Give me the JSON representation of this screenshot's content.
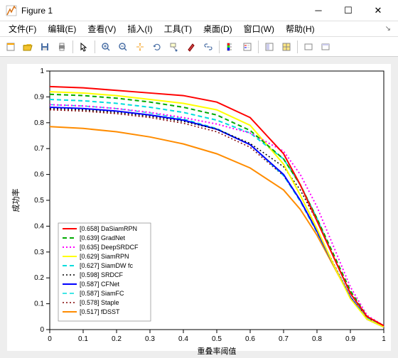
{
  "window": {
    "title": "Figure 1"
  },
  "menu": {
    "items": [
      "文件(F)",
      "编辑(E)",
      "查看(V)",
      "插入(I)",
      "工具(T)",
      "桌面(D)",
      "窗口(W)",
      "帮助(H)"
    ]
  },
  "chart": {
    "type": "line",
    "xlabel": "重叠率阈值",
    "ylabel": "成功率",
    "xlim": [
      0,
      1
    ],
    "ylim": [
      0,
      1
    ],
    "xticks": [
      0,
      0.1,
      0.2,
      0.3,
      0.4,
      0.5,
      0.6,
      0.7,
      0.8,
      0.9,
      1
    ],
    "yticks": [
      0,
      0.1,
      0.2,
      0.3,
      0.4,
      0.5,
      0.6,
      0.7,
      0.8,
      0.9,
      1
    ],
    "background_color": "#ffffff",
    "grid_color": "none",
    "axis_color": "#000000",
    "label_fontsize": 11,
    "tick_fontsize": 10,
    "legend": {
      "position": "lower-left",
      "fontsize": 9
    },
    "series": [
      {
        "label": "[0.658] DaSiamRPN",
        "color": "#ff0000",
        "dash": "solid",
        "width": 2,
        "data": [
          [
            0,
            0.94
          ],
          [
            0.1,
            0.935
          ],
          [
            0.2,
            0.925
          ],
          [
            0.3,
            0.915
          ],
          [
            0.4,
            0.905
          ],
          [
            0.5,
            0.88
          ],
          [
            0.6,
            0.82
          ],
          [
            0.7,
            0.68
          ],
          [
            0.75,
            0.56
          ],
          [
            0.8,
            0.42
          ],
          [
            0.85,
            0.28
          ],
          [
            0.9,
            0.14
          ],
          [
            0.95,
            0.05
          ],
          [
            1,
            0.015
          ]
        ]
      },
      {
        "label": "[0.639] GradNet",
        "color": "#00aa00",
        "dash": "dashed",
        "width": 2,
        "data": [
          [
            0,
            0.91
          ],
          [
            0.1,
            0.905
          ],
          [
            0.2,
            0.895
          ],
          [
            0.3,
            0.88
          ],
          [
            0.4,
            0.86
          ],
          [
            0.5,
            0.83
          ],
          [
            0.6,
            0.77
          ],
          [
            0.7,
            0.66
          ],
          [
            0.75,
            0.56
          ],
          [
            0.8,
            0.43
          ],
          [
            0.85,
            0.29
          ],
          [
            0.9,
            0.15
          ],
          [
            0.95,
            0.05
          ],
          [
            1,
            0.015
          ]
        ]
      },
      {
        "label": "[0.635] DeepSRDCF",
        "color": "#ff00ff",
        "dash": "dotted",
        "width": 2,
        "data": [
          [
            0,
            0.87
          ],
          [
            0.1,
            0.865
          ],
          [
            0.2,
            0.855
          ],
          [
            0.3,
            0.84
          ],
          [
            0.4,
            0.82
          ],
          [
            0.5,
            0.795
          ],
          [
            0.6,
            0.76
          ],
          [
            0.7,
            0.69
          ],
          [
            0.75,
            0.6
          ],
          [
            0.8,
            0.475
          ],
          [
            0.85,
            0.32
          ],
          [
            0.9,
            0.165
          ],
          [
            0.95,
            0.055
          ],
          [
            1,
            0.015
          ]
        ]
      },
      {
        "label": "[0.629] SiamRPN",
        "color": "#ffff00",
        "dash": "solid",
        "width": 2,
        "data": [
          [
            0,
            0.92
          ],
          [
            0.1,
            0.915
          ],
          [
            0.2,
            0.905
          ],
          [
            0.3,
            0.89
          ],
          [
            0.4,
            0.875
          ],
          [
            0.5,
            0.85
          ],
          [
            0.6,
            0.79
          ],
          [
            0.7,
            0.64
          ],
          [
            0.75,
            0.52
          ],
          [
            0.8,
            0.39
          ],
          [
            0.85,
            0.25
          ],
          [
            0.9,
            0.12
          ],
          [
            0.95,
            0.04
          ],
          [
            1,
            0.01
          ]
        ]
      },
      {
        "label": "[0.627] SiamDW fc",
        "color": "#00dddd",
        "dash": "dashed",
        "width": 2,
        "data": [
          [
            0,
            0.89
          ],
          [
            0.1,
            0.885
          ],
          [
            0.2,
            0.875
          ],
          [
            0.3,
            0.86
          ],
          [
            0.4,
            0.84
          ],
          [
            0.5,
            0.81
          ],
          [
            0.6,
            0.76
          ],
          [
            0.7,
            0.66
          ],
          [
            0.75,
            0.56
          ],
          [
            0.8,
            0.43
          ],
          [
            0.85,
            0.28
          ],
          [
            0.9,
            0.14
          ],
          [
            0.95,
            0.045
          ],
          [
            1,
            0.012
          ]
        ]
      },
      {
        "label": "[0.598] SRDCF",
        "color": "#000000",
        "dash": "dotted",
        "width": 1.5,
        "data": [
          [
            0,
            0.855
          ],
          [
            0.1,
            0.85
          ],
          [
            0.2,
            0.84
          ],
          [
            0.3,
            0.825
          ],
          [
            0.4,
            0.805
          ],
          [
            0.5,
            0.775
          ],
          [
            0.6,
            0.72
          ],
          [
            0.7,
            0.63
          ],
          [
            0.75,
            0.54
          ],
          [
            0.8,
            0.42
          ],
          [
            0.85,
            0.28
          ],
          [
            0.9,
            0.14
          ],
          [
            0.95,
            0.045
          ],
          [
            1,
            0.012
          ]
        ]
      },
      {
        "label": "[0.587] CFNet",
        "color": "#0000ff",
        "dash": "solid",
        "width": 2,
        "data": [
          [
            0,
            0.86
          ],
          [
            0.1,
            0.855
          ],
          [
            0.2,
            0.845
          ],
          [
            0.3,
            0.83
          ],
          [
            0.4,
            0.81
          ],
          [
            0.5,
            0.775
          ],
          [
            0.6,
            0.715
          ],
          [
            0.7,
            0.6
          ],
          [
            0.75,
            0.5
          ],
          [
            0.8,
            0.38
          ],
          [
            0.85,
            0.25
          ],
          [
            0.9,
            0.125
          ],
          [
            0.95,
            0.04
          ],
          [
            1,
            0.01
          ]
        ]
      },
      {
        "label": "[0.587] SiamFC",
        "color": "#00dddd",
        "dash": "dashed",
        "width": 1.5,
        "data": [
          [
            0,
            0.87
          ],
          [
            0.1,
            0.865
          ],
          [
            0.2,
            0.855
          ],
          [
            0.3,
            0.838
          ],
          [
            0.4,
            0.815
          ],
          [
            0.5,
            0.778
          ],
          [
            0.6,
            0.715
          ],
          [
            0.7,
            0.595
          ],
          [
            0.75,
            0.495
          ],
          [
            0.8,
            0.375
          ],
          [
            0.85,
            0.248
          ],
          [
            0.9,
            0.122
          ],
          [
            0.95,
            0.04
          ],
          [
            1,
            0.01
          ]
        ]
      },
      {
        "label": "[0.578] Staple",
        "color": "#800000",
        "dash": "dotted",
        "width": 1.5,
        "data": [
          [
            0,
            0.85
          ],
          [
            0.1,
            0.845
          ],
          [
            0.2,
            0.835
          ],
          [
            0.3,
            0.82
          ],
          [
            0.4,
            0.798
          ],
          [
            0.5,
            0.765
          ],
          [
            0.6,
            0.705
          ],
          [
            0.7,
            0.595
          ],
          [
            0.75,
            0.5
          ],
          [
            0.8,
            0.385
          ],
          [
            0.85,
            0.255
          ],
          [
            0.9,
            0.128
          ],
          [
            0.95,
            0.042
          ],
          [
            1,
            0.011
          ]
        ]
      },
      {
        "label": "[0.517] fDSST",
        "color": "#ff8c00",
        "dash": "solid",
        "width": 2,
        "data": [
          [
            0,
            0.785
          ],
          [
            0.1,
            0.778
          ],
          [
            0.2,
            0.765
          ],
          [
            0.3,
            0.745
          ],
          [
            0.4,
            0.718
          ],
          [
            0.5,
            0.68
          ],
          [
            0.6,
            0.625
          ],
          [
            0.7,
            0.54
          ],
          [
            0.75,
            0.465
          ],
          [
            0.8,
            0.365
          ],
          [
            0.85,
            0.245
          ],
          [
            0.9,
            0.125
          ],
          [
            0.95,
            0.04
          ],
          [
            1,
            0.01
          ]
        ]
      }
    ]
  }
}
